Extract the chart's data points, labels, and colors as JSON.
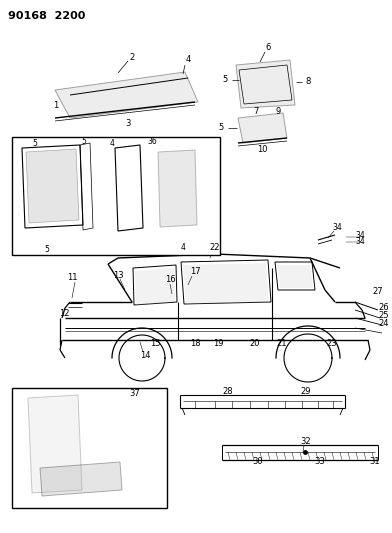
{
  "title": "90168  2200",
  "bg_color": "#ffffff",
  "fig_width": 3.92,
  "fig_height": 5.33,
  "dpi": 100
}
